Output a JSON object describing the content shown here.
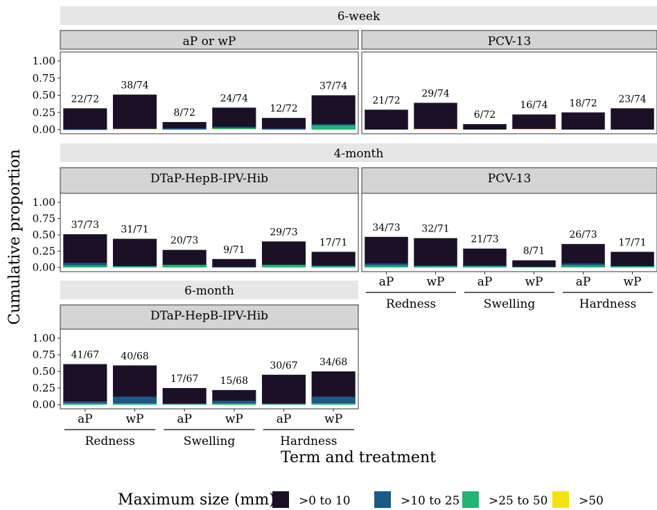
{
  "ylabel": "Cumulative proportion",
  "xlabel": "Term and treatment",
  "legend": {
    "title": "Maximum size (mm)",
    "items": [
      {
        "label": ">0 to 10",
        "color": "#1a1127"
      },
      {
        "label": ">10 to 25",
        "color": "#1b5a87"
      },
      {
        "label": ">25 to 50",
        "color": "#22b573"
      },
      {
        "label": ">50",
        "color": "#f2e213"
      }
    ]
  },
  "y_ticks": [
    "1.00",
    "0.75",
    "0.50",
    "0.25",
    "0.00"
  ],
  "x_ticks": [
    "aP",
    "wP",
    "aP",
    "wP",
    "aP",
    "wP"
  ],
  "x_groups": [
    "Redness",
    "Swelling",
    "Hardness"
  ],
  "chart_data": {
    "type": "bar",
    "ylim": [
      0,
      1
    ],
    "stacked": true,
    "series_names": [
      ">0 to 10",
      ">10 to 25",
      ">25 to 50",
      ">50"
    ],
    "categories": [
      "Redness aP",
      "Redness wP",
      "Swelling aP",
      "Swelling wP",
      "Hardness aP",
      "Hardness wP"
    ],
    "terms": [
      {
        "name": "6-week",
        "panels": [
          {
            "name": "aP or wP",
            "labels": [
              "22/72",
              "38/74",
              "8/72",
              "24/74",
              "12/72",
              "37/74"
            ],
            "totals": [
              0.31,
              0.51,
              0.11,
              0.32,
              0.17,
              0.5
            ],
            "stacks": [
              [
                0.005,
                0,
                0
              ],
              [
                0.015,
                0,
                0.01
              ],
              [
                0.02,
                0,
                0
              ],
              [
                0.04,
                0.02,
                0.01
              ],
              [
                0.015,
                0,
                0
              ],
              [
                0.08,
                0.06,
                0
              ]
            ]
          },
          {
            "name": "PCV-13",
            "labels": [
              "21/72",
              "29/74",
              "6/72",
              "16/74",
              "18/72",
              "23/74"
            ],
            "totals": [
              0.29,
              0.39,
              0.08,
              0.22,
              0.25,
              0.31
            ],
            "stacks": [
              [
                0,
                0,
                0
              ],
              [
                0,
                0,
                0.01
              ],
              [
                0,
                0,
                0
              ],
              [
                0,
                0,
                0.01
              ],
              [
                0,
                0,
                0
              ],
              [
                0,
                0,
                0
              ]
            ]
          }
        ]
      },
      {
        "name": "4-month",
        "panels": [
          {
            "name": "DTaP-HepB-IPV-Hib",
            "labels": [
              "37/73",
              "31/71",
              "20/73",
              "9/71",
              "29/73",
              "17/71"
            ],
            "totals": [
              0.51,
              0.44,
              0.27,
              0.13,
              0.4,
              0.24
            ],
            "stacks": [
              [
                0.07,
                0.03,
                0
              ],
              [
                0.02,
                0.02,
                0
              ],
              [
                0.04,
                0.04,
                0
              ],
              [
                0.01,
                0,
                0
              ],
              [
                0.04,
                0.04,
                0
              ],
              [
                0.03,
                0.02,
                0
              ]
            ]
          },
          {
            "name": "PCV-13",
            "labels": [
              "34/73",
              "32/71",
              "21/73",
              "8/71",
              "26/73",
              "17/71"
            ],
            "totals": [
              0.47,
              0.45,
              0.29,
              0.11,
              0.36,
              0.24
            ],
            "stacks": [
              [
                0.06,
                0.03,
                0
              ],
              [
                0.03,
                0.02,
                0
              ],
              [
                0.03,
                0.02,
                0
              ],
              [
                0.01,
                0.01,
                0
              ],
              [
                0.06,
                0.03,
                0
              ],
              [
                0.02,
                0.02,
                0
              ]
            ]
          }
        ]
      },
      {
        "name": "6-month",
        "panels": [
          {
            "name": "DTaP-HepB-IPV-Hib",
            "labels": [
              "41/67",
              "40/68",
              "17/67",
              "15/68",
              "30/67",
              "34/68"
            ],
            "totals": [
              0.61,
              0.59,
              0.25,
              0.22,
              0.45,
              0.5
            ],
            "stacks": [
              [
                0.05,
                0.02,
                0
              ],
              [
                0.12,
                0.02,
                0
              ],
              [
                0.02,
                0.01,
                0
              ],
              [
                0.06,
                0.02,
                0
              ],
              [
                0.02,
                0.01,
                0
              ],
              [
                0.12,
                0.02,
                0
              ]
            ]
          }
        ]
      }
    ]
  }
}
